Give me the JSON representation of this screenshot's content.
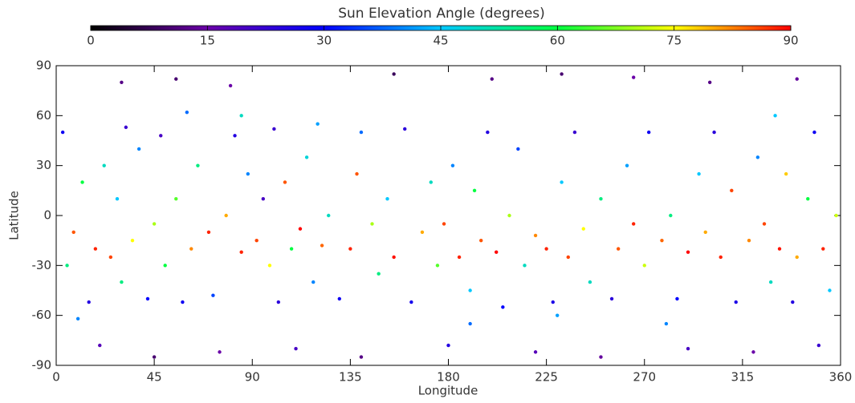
{
  "chart_data": {
    "type": "scatter",
    "colorbar_label": "Sun Elevation Angle (degrees)",
    "xlabel": "Longitude",
    "ylabel": "Latitude",
    "xlim": [
      0,
      360
    ],
    "xticks": [
      0,
      45,
      90,
      135,
      180,
      225,
      270,
      315,
      360
    ],
    "ylim": [
      -90,
      90
    ],
    "yticks": [
      -90,
      -60,
      -30,
      0,
      30,
      60,
      90
    ],
    "clim": [
      0,
      90
    ],
    "cticks": [
      0,
      15,
      30,
      45,
      60,
      75,
      90
    ],
    "colormap": [
      "#000000",
      "#6a00a8",
      "#0000ff",
      "#00c8ff",
      "#00ff40",
      "#ffff00",
      "#ff0000"
    ],
    "grid": false,
    "x": [
      3,
      8,
      12,
      15,
      18,
      22,
      25,
      28,
      30,
      32,
      35,
      38,
      42,
      45,
      48,
      50,
      55,
      58,
      62,
      65,
      70,
      72,
      78,
      82,
      85,
      88,
      92,
      95,
      98,
      100,
      102,
      105,
      108,
      112,
      115,
      118,
      122,
      125,
      130,
      135,
      138,
      140,
      145,
      148,
      152,
      155,
      160,
      163,
      168,
      172,
      175,
      178,
      182,
      185,
      190,
      192,
      195,
      198,
      202,
      205,
      208,
      212,
      215,
      220,
      225,
      228,
      232,
      235,
      238,
      242,
      245,
      250,
      255,
      258,
      262,
      265,
      270,
      272,
      278,
      282,
      285,
      290,
      295,
      298,
      302,
      305,
      310,
      312,
      318,
      322,
      325,
      328,
      332,
      335,
      338,
      340,
      345,
      348,
      352,
      355,
      358,
      30,
      55,
      80,
      155,
      200,
      232,
      265,
      300,
      340,
      20,
      45,
      75,
      110,
      140,
      180,
      220,
      250,
      290,
      320,
      350,
      10,
      60,
      85,
      120,
      190,
      230,
      280,
      330,
      5
    ],
    "values": [
      50,
      -10,
      20,
      -52,
      -20,
      30,
      -25,
      10,
      -40,
      53,
      -15,
      40,
      -50,
      -5,
      48,
      -30,
      10,
      -52,
      -20,
      30,
      -10,
      -48,
      0,
      48,
      -22,
      25,
      -15,
      10,
      -30,
      52,
      -52,
      20,
      -20,
      -8,
      35,
      -40,
      -18,
      0,
      -50,
      -20,
      25,
      50,
      -5,
      -35,
      10,
      -25,
      52,
      -52,
      -10,
      20,
      -30,
      -5,
      30,
      -25,
      -45,
      15,
      -15,
      50,
      -22,
      -55,
      0,
      40,
      -30,
      -12,
      -20,
      -52,
      20,
      -25,
      50,
      -8,
      -40,
      10,
      -50,
      -20,
      30,
      -5,
      -30,
      50,
      -15,
      0,
      -50,
      -22,
      25,
      -10,
      50,
      -25,
      15,
      -52,
      -15,
      35,
      -5,
      -40,
      -20,
      25,
      -52,
      -25,
      10,
      50,
      -20,
      -45,
      0,
      80,
      82,
      78,
      85,
      82,
      85,
      83,
      80,
      82,
      -78,
      -85,
      -82,
      -80,
      -85,
      -78,
      -82,
      -85,
      -80,
      -82,
      -78,
      -62,
      62,
      60,
      55,
      -65,
      -60,
      -65,
      60,
      -30
    ],
    "c": [
      28,
      85,
      60,
      25,
      88,
      50,
      86,
      45,
      55,
      22,
      75,
      40,
      30,
      70,
      20,
      60,
      65,
      28,
      82,
      55,
      88,
      35,
      80,
      25,
      88,
      40,
      86,
      20,
      75,
      22,
      24,
      85,
      60,
      90,
      48,
      40,
      84,
      50,
      28,
      88,
      85,
      38,
      70,
      55,
      45,
      89,
      24,
      27,
      80,
      50,
      65,
      86,
      40,
      88,
      45,
      60,
      85,
      25,
      90,
      30,
      70,
      35,
      50,
      82,
      88,
      26,
      45,
      86,
      22,
      75,
      50,
      55,
      24,
      85,
      42,
      88,
      72,
      28,
      84,
      55,
      30,
      90,
      45,
      80,
      24,
      88,
      86,
      26,
      82,
      40,
      86,
      50,
      89,
      78,
      25,
      80,
      60,
      28,
      88,
      45,
      72,
      12,
      10,
      15,
      8,
      12,
      10,
      15,
      12,
      14,
      18,
      10,
      15,
      20,
      12,
      25,
      18,
      14,
      20,
      15,
      22,
      40,
      38,
      50,
      42,
      38,
      42,
      40,
      45,
      55
    ]
  }
}
